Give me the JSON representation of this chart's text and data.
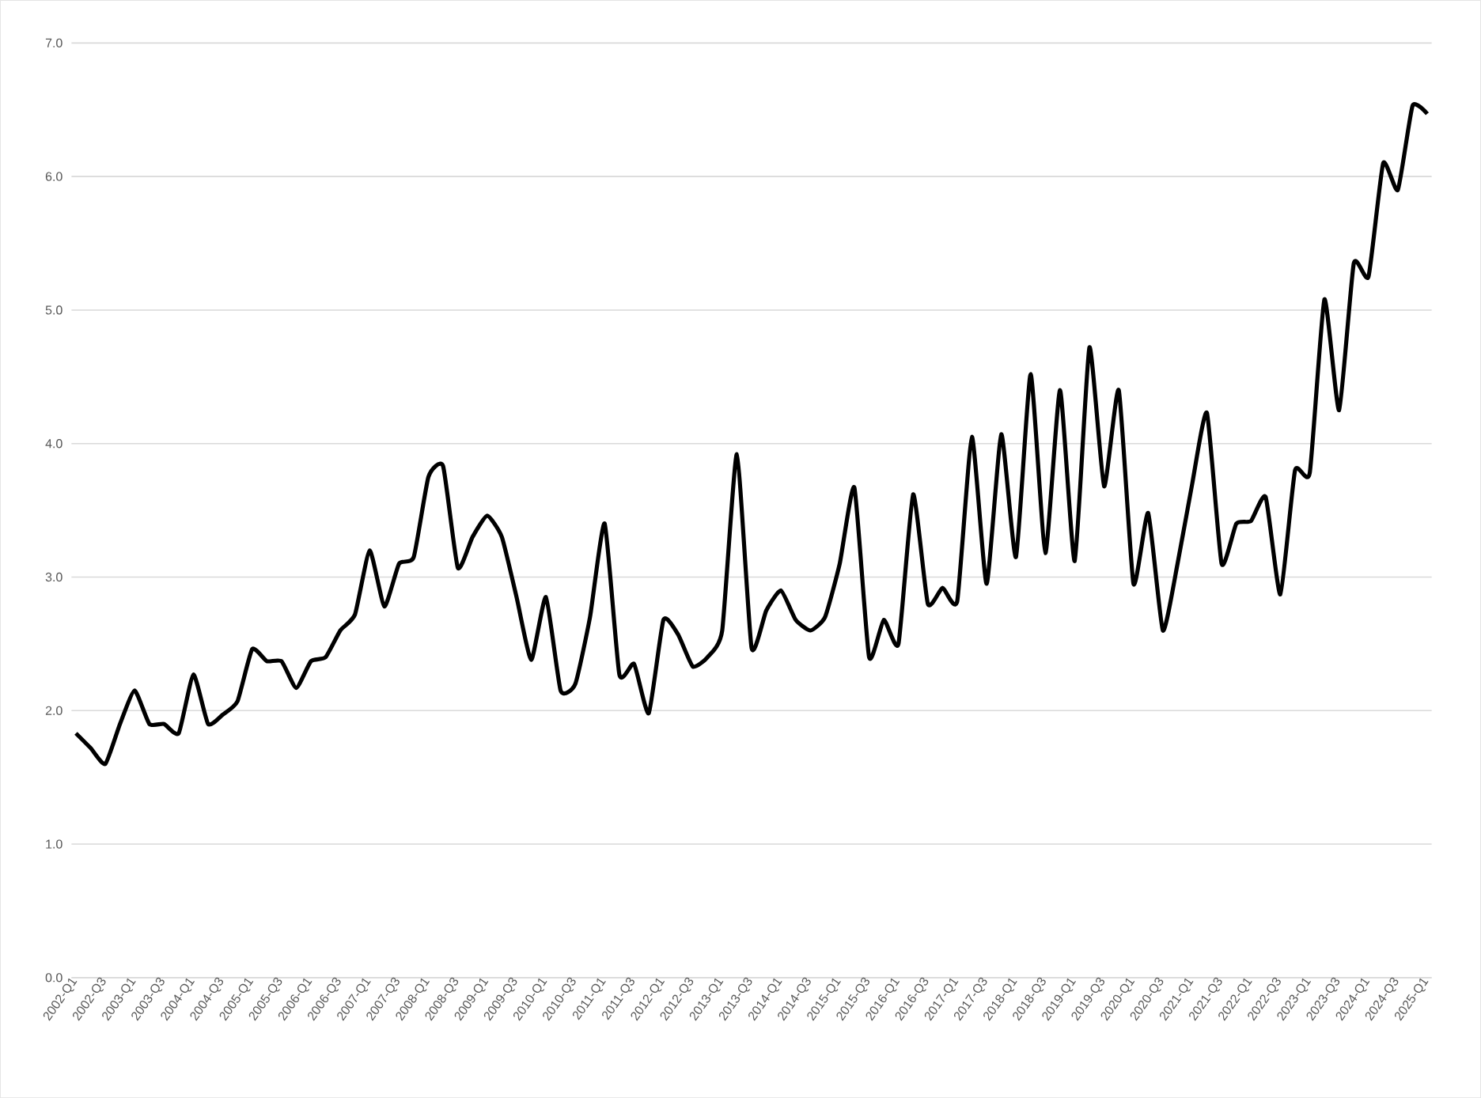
{
  "chart_data": {
    "type": "line",
    "categories": [
      "2002-Q1",
      null,
      "2002-Q3",
      null,
      "2003-Q1",
      null,
      "2003-Q3",
      null,
      "2004-Q1",
      null,
      "2004-Q3",
      null,
      "2005-Q1",
      null,
      "2005-Q3",
      null,
      "2006-Q1",
      null,
      "2006-Q3",
      null,
      "2007-Q1",
      null,
      "2007-Q3",
      null,
      "2008-Q1",
      null,
      "2008-Q3",
      null,
      "2009-Q1",
      null,
      "2009-Q3",
      null,
      "2010-Q1",
      null,
      "2010-Q3",
      null,
      "2011-Q1",
      null,
      "2011-Q3",
      null,
      "2012-Q1",
      null,
      "2012-Q3",
      null,
      "2013-Q1",
      null,
      "2013-Q3",
      null,
      "2014-Q1",
      null,
      "2014-Q3",
      null,
      "2015-Q1",
      null,
      "2015-Q3",
      null,
      "2016-Q1",
      null,
      "2016-Q3",
      null,
      "2017-Q1",
      null,
      "2017-Q3",
      null,
      "2018-Q1",
      null,
      "2018-Q3",
      null,
      "2019-Q1",
      null,
      "2019-Q3",
      null,
      "2020-Q1",
      null,
      "2020-Q3",
      null,
      "2021-Q1",
      null,
      "2021-Q3",
      null,
      "2022-Q1",
      null,
      "2022-Q3",
      null,
      "2023-Q1",
      null,
      "2023-Q3",
      null,
      "2024-Q1",
      null,
      "2024-Q3",
      null,
      "2025-Q1"
    ],
    "series": [
      {
        "color": "#000000",
        "values": [
          1.83,
          1.72,
          1.6,
          1.9,
          2.15,
          1.9,
          1.9,
          1.83,
          2.27,
          1.9,
          1.97,
          2.07,
          2.46,
          2.37,
          2.37,
          2.17,
          2.37,
          2.4,
          2.6,
          2.72,
          3.2,
          2.78,
          3.1,
          3.15,
          3.75,
          3.83,
          3.07,
          3.3,
          3.46,
          3.3,
          2.85,
          2.38,
          2.85,
          2.15,
          2.2,
          2.7,
          3.4,
          2.27,
          2.35,
          1.98,
          2.68,
          2.57,
          2.33,
          2.4,
          2.6,
          3.92,
          2.47,
          2.75,
          2.9,
          2.68,
          2.6,
          2.7,
          3.1,
          3.67,
          2.4,
          2.68,
          2.5,
          3.62,
          2.8,
          2.92,
          2.82,
          4.05,
          2.95,
          4.07,
          3.15,
          4.52,
          3.18,
          4.4,
          3.12,
          4.72,
          3.68,
          4.4,
          2.95,
          3.48,
          2.6,
          3.1,
          3.7,
          4.23,
          3.1,
          3.4,
          3.42,
          3.6,
          2.87,
          3.8,
          3.78,
          5.08,
          4.25,
          5.35,
          5.25,
          6.1,
          5.9,
          6.53,
          6.47
        ]
      }
    ],
    "ylim": [
      0,
      7
    ],
    "yticks": [
      {
        "value": 0,
        "label": "0.0"
      },
      {
        "value": 1,
        "label": "1.0"
      },
      {
        "value": 2,
        "label": "2.0"
      },
      {
        "value": 3,
        "label": "3.0"
      },
      {
        "value": 4,
        "label": "4.0"
      },
      {
        "value": 5,
        "label": "5.0"
      },
      {
        "value": 6,
        "label": "6.0"
      },
      {
        "value": 7,
        "label": "7.0"
      }
    ],
    "grid": "y",
    "legend": false,
    "marker": "none",
    "line_style": "solid"
  }
}
